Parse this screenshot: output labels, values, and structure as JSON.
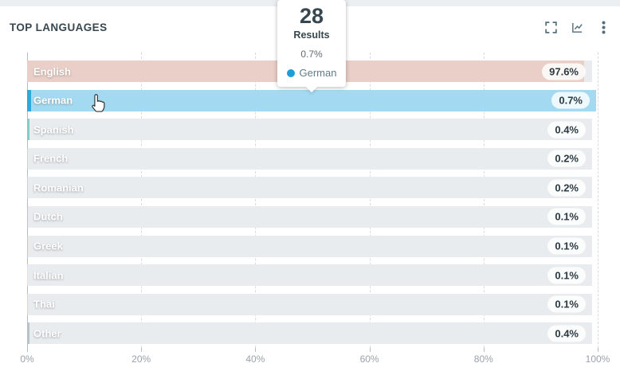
{
  "header": {
    "title": "TOP LANGUAGES",
    "icons": [
      {
        "name": "fullscreen-icon"
      },
      {
        "name": "line-chart-icon"
      },
      {
        "name": "kebab-menu-icon"
      }
    ]
  },
  "tooltip": {
    "count": "28",
    "count_label": "Results",
    "value": "0.7%",
    "series": "German",
    "dot_color": "#1b9fd8"
  },
  "chart_data": {
    "type": "bar",
    "orientation": "horizontal",
    "title": "TOP LANGUAGES",
    "categories": [
      "English",
      "German",
      "Spanish",
      "French",
      "Romanian",
      "Dutch",
      "Greek",
      "Italian",
      "Thai",
      "Other"
    ],
    "values": [
      97.6,
      0.7,
      0.4,
      0.2,
      0.2,
      0.1,
      0.1,
      0.1,
      0.1,
      0.4
    ],
    "value_labels": [
      "97.6%",
      "0.7%",
      "0.4%",
      "0.2%",
      "0.2%",
      "0.1%",
      "0.1%",
      "0.1%",
      "0.1%",
      "0.4%"
    ],
    "bar_colors": [
      "#e9cfc7",
      "#2fa9dc",
      "#84ccc4",
      "#f2bfca",
      "#d8c7e0",
      "#9fd4cc",
      "#aacfe2",
      "#efe6ac",
      "#e3d6c2",
      "#b7c3c9"
    ],
    "highlighted": "German",
    "highlight_row_color": "#a3daf1",
    "track_color": "#e8ecee",
    "x_ticks": [
      "0%",
      "20%",
      "40%",
      "60%",
      "80%",
      "100%"
    ],
    "xlim": [
      0,
      100
    ],
    "grid": "vertical-dashed",
    "legend_position": "tooltip"
  }
}
